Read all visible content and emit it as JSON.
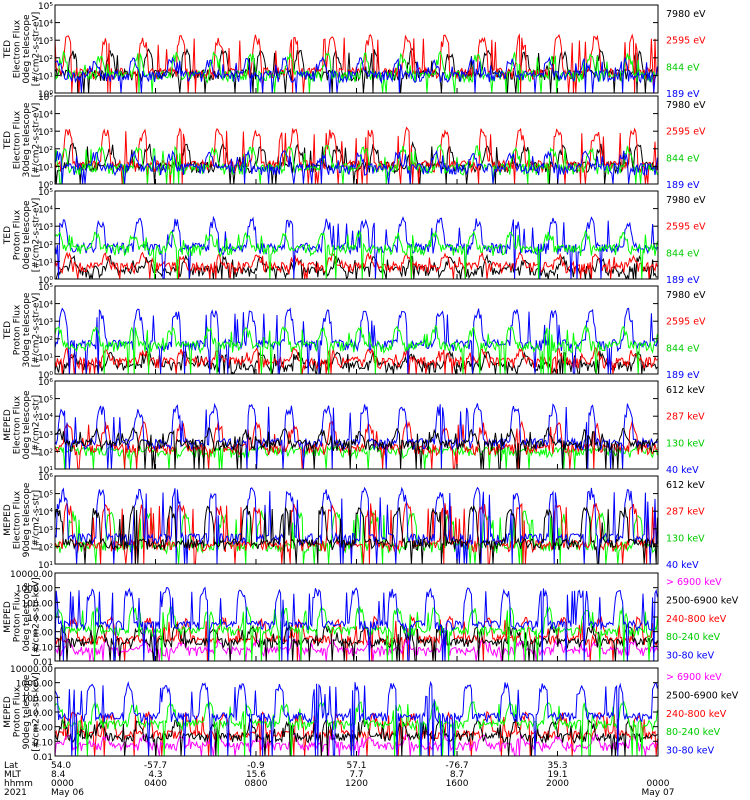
{
  "chart_data": [
    {
      "type": "line",
      "ylabel": [
        "TED",
        "Electron Flux",
        "0deg telescope",
        "[#/cm2-s-str-eV]"
      ],
      "yscale": "log",
      "yticks": [
        "10⁰",
        "10¹",
        "10²",
        "10³",
        "10⁴",
        "10⁵"
      ],
      "ylim": [
        1,
        100000
      ],
      "series": [
        {
          "name": "7980 eV",
          "color": "#000000",
          "base": 12,
          "spike": 300
        },
        {
          "name": "2595 eV",
          "color": "#ff0000",
          "base": 15,
          "spike": 2000
        },
        {
          "name": "844 eV",
          "color": "#00ff00",
          "base": 10,
          "spike": 200
        },
        {
          "name": "189 eV",
          "color": "#0000ff",
          "base": 10,
          "spike": 100
        }
      ]
    },
    {
      "type": "line",
      "ylabel": [
        "TED",
        "Electron Flux",
        "30deg telescope",
        "[#/cm2-s-str-eV]"
      ],
      "yscale": "log",
      "yticks": [
        "10⁰",
        "10¹",
        "10²",
        "10³",
        "10⁴",
        "10⁵"
      ],
      "ylim": [
        1,
        100000
      ],
      "series": [
        {
          "name": "7980 eV",
          "color": "#000000",
          "base": 10,
          "spike": 200
        },
        {
          "name": "2595 eV",
          "color": "#ff0000",
          "base": 12,
          "spike": 1500
        },
        {
          "name": "844 eV",
          "color": "#00ff00",
          "base": 8,
          "spike": 150
        },
        {
          "name": "189 eV",
          "color": "#0000ff",
          "base": 8,
          "spike": 80
        }
      ]
    },
    {
      "type": "line",
      "ylabel": [
        "TED",
        "Proton Flux",
        "0deg telescope",
        "[#/cm2-s-str-eV]"
      ],
      "yscale": "log",
      "yticks": [
        "10⁰",
        "10¹",
        "10²",
        "10³",
        "10⁴",
        "10⁵"
      ],
      "ylim": [
        1,
        100000
      ],
      "series": [
        {
          "name": "7980 eV",
          "color": "#000000",
          "base": 3,
          "spike": 20
        },
        {
          "name": "2595 eV",
          "color": "#ff0000",
          "base": 5,
          "spike": 30
        },
        {
          "name": "189 eV",
          "color": "#0000ff",
          "base": 60,
          "spike": 3000
        },
        {
          "name": "844 eV",
          "color": "#00ff00",
          "base": 50,
          "spike": 500
        }
      ]
    },
    {
      "type": "line",
      "ylabel": [
        "TED",
        "Proton Flux",
        "30deg telescope",
        "[#/cm2-s-str-eV]"
      ],
      "yscale": "log",
      "yticks": [
        "10⁰",
        "10¹",
        "10²",
        "10³",
        "10⁴",
        "10⁵"
      ],
      "ylim": [
        1,
        100000
      ],
      "series": [
        {
          "name": "7980 eV",
          "color": "#000000",
          "base": 3,
          "spike": 20
        },
        {
          "name": "2595 eV",
          "color": "#ff0000",
          "base": 5,
          "spike": 30
        },
        {
          "name": "189 eV",
          "color": "#0000ff",
          "base": 50,
          "spike": 5000
        },
        {
          "name": "844 eV",
          "color": "#00ff00",
          "base": 40,
          "spike": 500
        }
      ]
    },
    {
      "type": "line",
      "ylabel": [
        "MEPED",
        "Electron Flux",
        "0deg telescope",
        "[#/cm2-s-str]"
      ],
      "yscale": "log",
      "yticks": [
        "10¹",
        "10²",
        "10³",
        "10⁴",
        "10⁵",
        "10⁶"
      ],
      "ylim": [
        10,
        1000000
      ],
      "series": [
        {
          "name": "130 keV",
          "color": "#00ff00",
          "base": 100,
          "spike": 200
        },
        {
          "name": "287 keV",
          "color": "#ff0000",
          "base": 150,
          "spike": 5000
        },
        {
          "name": "40 keV",
          "color": "#0000ff",
          "base": 300,
          "spike": 50000
        },
        {
          "name": "612 keV",
          "color": "#000000",
          "base": 250,
          "spike": 2000
        }
      ]
    },
    {
      "type": "line",
      "ylabel": [
        "MEPED",
        "Electron Flux",
        "90deg telescope",
        "[#/cm2-s-str]"
      ],
      "yscale": "log",
      "yticks": [
        "10¹",
        "10²",
        "10³",
        "10⁴",
        "10⁵",
        "10⁶"
      ],
      "ylim": [
        10,
        1000000
      ],
      "series": [
        {
          "name": "130 keV",
          "color": "#00ff00",
          "base": 100,
          "spike": 10000
        },
        {
          "name": "287 keV",
          "color": "#ff0000",
          "base": 120,
          "spike": 30000
        },
        {
          "name": "40 keV",
          "color": "#0000ff",
          "base": 300,
          "spike": 200000
        },
        {
          "name": "612 keV",
          "color": "#000000",
          "base": 150,
          "spike": 20000
        }
      ]
    },
    {
      "type": "line",
      "ylabel": [
        "MEPED",
        "Proton Flux",
        "0deg telescope",
        "[#/cm2-s-str-keV]"
      ],
      "yscale": "log",
      "yticks": [
        "0.01",
        "0.10",
        "1.00",
        "10.00",
        "100.00",
        "1000.00",
        "10000.00"
      ],
      "ylim": [
        0.01,
        10000
      ],
      "series": [
        {
          "name": "240-800 keV",
          "color": "#ff0000",
          "base": 0.3,
          "spike": 10
        },
        {
          "name": "> 6900 keV",
          "color": "#ff00ff",
          "base": 0.05,
          "spike": 0.3
        },
        {
          "name": "2500-6900 keV",
          "color": "#000000",
          "base": 0.2,
          "spike": 3
        },
        {
          "name": "80-240 keV",
          "color": "#00ff00",
          "base": 1.2,
          "spike": 50
        },
        {
          "name": "30-80 keV",
          "color": "#0000ff",
          "base": 3,
          "spike": 1000
        }
      ]
    },
    {
      "type": "line",
      "ylabel": [
        "MEPED",
        "Proton Flux",
        "90deg telescope",
        "[#/cm2-s-str-keV]"
      ],
      "yscale": "log",
      "yticks": [
        "0.01",
        "0.10",
        "1.00",
        "10.00",
        "100.00",
        "1000.00",
        "10000.00"
      ],
      "ylim": [
        0.01,
        10000
      ],
      "series": [
        {
          "name": "240-800 keV",
          "color": "#ff0000",
          "base": 0.3,
          "spike": 10
        },
        {
          "name": "> 6900 keV",
          "color": "#ff00ff",
          "base": 0.05,
          "spike": 0.3
        },
        {
          "name": "2500-6900 keV",
          "color": "#000000",
          "base": 0.2,
          "spike": 3
        },
        {
          "name": "80-240 keV",
          "color": "#00ff00",
          "base": 1.5,
          "spike": 50
        },
        {
          "name": "30-80 keV",
          "color": "#0000ff",
          "base": 5,
          "spike": 1000
        }
      ]
    }
  ],
  "x_axis": {
    "row_labels": [
      "Lat",
      "MLT",
      "hhmm",
      "2021"
    ],
    "ticks": [
      {
        "frac": 0.0,
        "lat": "54.0",
        "mlt": "8.4",
        "hhmm": "0000",
        "date": "May 06"
      },
      {
        "frac": 0.1667,
        "lat": "-57.7",
        "mlt": "4.3",
        "hhmm": "0400",
        "date": ""
      },
      {
        "frac": 0.3333,
        "lat": "-0.9",
        "mlt": "15.6",
        "hhmm": "0800",
        "date": ""
      },
      {
        "frac": 0.5,
        "lat": "57.1",
        "mlt": "7.7",
        "hhmm": "1200",
        "date": ""
      },
      {
        "frac": 0.6667,
        "lat": "-76.7",
        "mlt": "8.7",
        "hhmm": "1600",
        "date": ""
      },
      {
        "frac": 0.8333,
        "lat": "35.3",
        "mlt": "19.1",
        "hhmm": "2000",
        "date": ""
      },
      {
        "frac": 1.0,
        "lat": "",
        "mlt": "",
        "hhmm": "0000",
        "date": "May 07"
      }
    ]
  },
  "legend_colors": {
    "7980 eV": "#000000",
    "2595 eV": "#ff0000",
    "844 eV": "#00cc00",
    "189 eV": "#0000ff",
    "612 keV": "#000000",
    "287 keV": "#ff0000",
    "130 keV": "#00cc00",
    "40 keV": "#0000ff",
    "> 6900 keV": "#ff00ff",
    "2500-6900 keV": "#000000",
    "240-800 keV": "#ff0000",
    "80-240 keV": "#00cc00",
    "30-80 keV": "#0000ff"
  },
  "legend_order": [
    [
      "7980 eV",
      "2595 eV",
      "844 eV",
      "189 eV"
    ],
    [
      "7980 eV",
      "2595 eV",
      "844 eV",
      "189 eV"
    ],
    [
      "7980 eV",
      "2595 eV",
      "844 eV",
      "189 eV"
    ],
    [
      "7980 eV",
      "2595 eV",
      "844 eV",
      "189 eV"
    ],
    [
      "612 keV",
      "287 keV",
      "130 keV",
      "40 keV"
    ],
    [
      "612 keV",
      "287 keV",
      "130 keV",
      "40 keV"
    ],
    [
      "> 6900 keV",
      "2500-6900 keV",
      "240-800 keV",
      "80-240 keV",
      "30-80 keV"
    ],
    [
      "> 6900 keV",
      "2500-6900 keV",
      "240-800 keV",
      "80-240 keV",
      "30-80 keV"
    ]
  ]
}
